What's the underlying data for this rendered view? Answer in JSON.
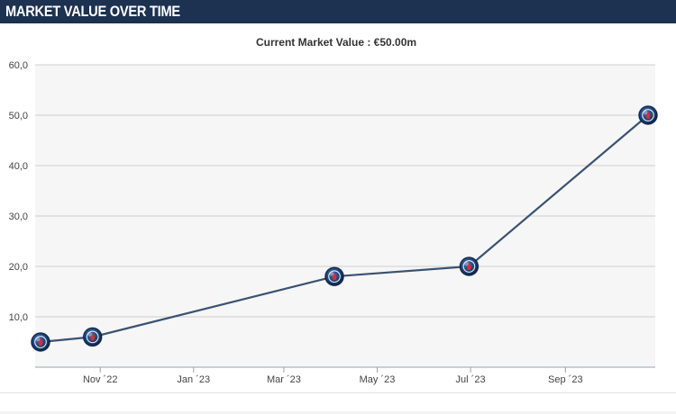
{
  "header": {
    "title": "MARKET VALUE OVER TIME"
  },
  "subtitle": {
    "label": "Current Market Value :",
    "value": "€50.00m"
  },
  "colors": {
    "header_bg": "#1d3150",
    "line": "#3a5272",
    "plot_bg": "#f6f6f6",
    "grid": "#cfcfcf"
  },
  "icons": {
    "marker": "psg-crest-icon"
  },
  "chart_data": {
    "type": "line",
    "title": "",
    "xlabel": "",
    "ylabel": "",
    "ylim": [
      0,
      60
    ],
    "yticks": [
      "60,0",
      "50,0",
      "40,0",
      "30,0",
      "20,0",
      "10,0"
    ],
    "ytick_values": [
      60,
      50,
      40,
      30,
      20,
      10
    ],
    "xticks": [
      "Nov ´22",
      "Jan ´23",
      "Mar ´23",
      "May ´23",
      "Jul ´23",
      "Sep ´23"
    ],
    "xtick_dates": [
      "2022-11-01",
      "2023-01-01",
      "2023-03-01",
      "2023-05-01",
      "2023-07-01",
      "2023-09-01"
    ],
    "xlim": [
      "2022-09-23",
      "2023-10-25"
    ],
    "grid": true,
    "series": [
      {
        "points": [
          {
            "date": "2022-09-23",
            "value": 5
          },
          {
            "date": "2022-10-27",
            "value": 6
          },
          {
            "date": "2023-04-03",
            "value": 18
          },
          {
            "date": "2023-06-30",
            "value": 20
          },
          {
            "date": "2023-10-25",
            "value": 50
          }
        ]
      }
    ]
  }
}
